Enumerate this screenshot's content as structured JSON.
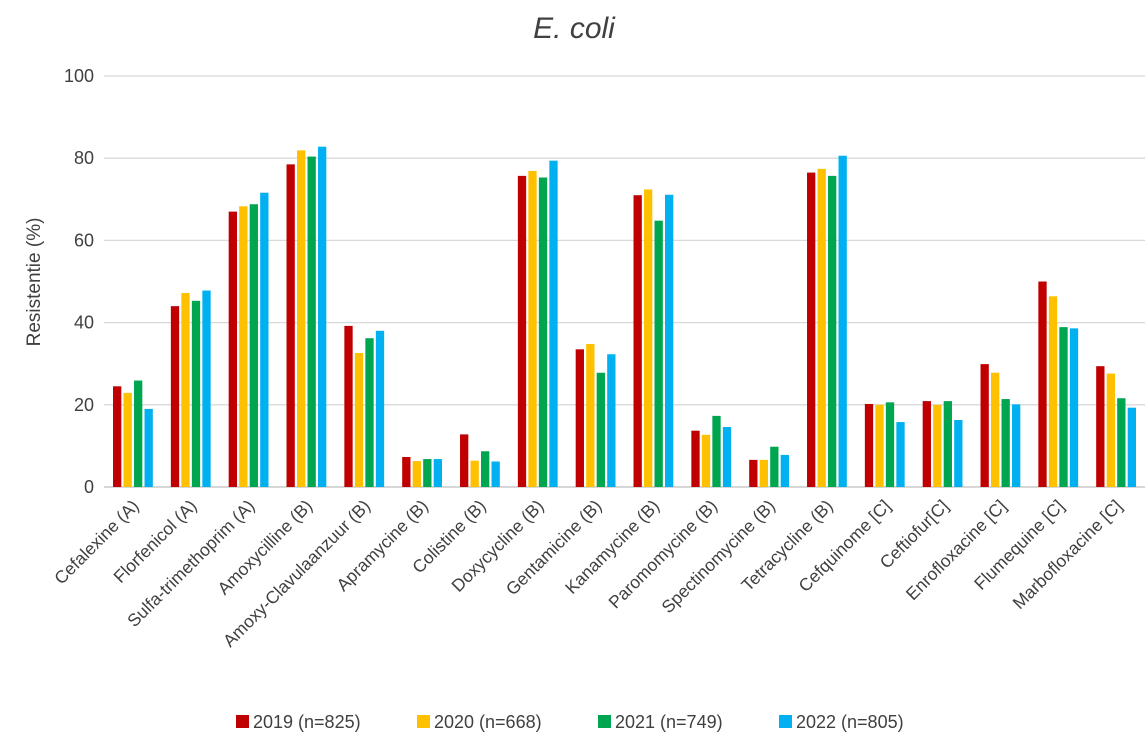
{
  "chart_data": {
    "type": "bar",
    "title": "E. coli",
    "xlabel": "",
    "ylabel": "Resistentie (%)",
    "ylim": [
      0,
      100
    ],
    "yticks": [
      0,
      20,
      40,
      60,
      80,
      100
    ],
    "grid": true,
    "legend_position": "bottom",
    "categories": [
      "Cefalexine (A)",
      "Florfenicol (A)",
      "Sulfa-trimethoprim (A)",
      "Amoxycilline (B)",
      "Amoxy-Clavulaanzuur (B)",
      "Apramycine (B)",
      "Colistine (B)",
      "Doxycycline (B)",
      "Gentamicine (B)",
      "Kanamycine (B)",
      "Paromomycine (B)",
      "Spectinomycine (B)",
      "Tetracycline (B)",
      "Cefquinome [C]",
      "Ceftiofur[C]",
      "Enrofloxacine [C]",
      "Flumequine [C]",
      "Marbofloxacine [C]"
    ],
    "series": [
      {
        "name": "2019 (n=825)",
        "color": "#c00000",
        "values": [
          24.5,
          44,
          67,
          78.5,
          39.2,
          7.3,
          12.8,
          75.7,
          33.5,
          71,
          13.7,
          6.6,
          76.5,
          20.2,
          20.9,
          29.9,
          50,
          29.4
        ]
      },
      {
        "name": "2020 (n=668)",
        "color": "#ffc000",
        "values": [
          22.9,
          47.2,
          68.3,
          81.9,
          32.6,
          6.3,
          6.4,
          76.9,
          34.8,
          72.4,
          12.7,
          6.6,
          77.4,
          20,
          20,
          27.8,
          46.4,
          27.6
        ]
      },
      {
        "name": "2021 (n=749)",
        "color": "#00a64f",
        "values": [
          25.9,
          45.3,
          68.8,
          80.4,
          36.2,
          6.8,
          8.7,
          75.3,
          27.8,
          64.8,
          17.3,
          9.8,
          75.7,
          20.6,
          20.9,
          21.4,
          38.9,
          21.6
        ]
      },
      {
        "name": "2022 (n=805)",
        "color": "#00b0f0",
        "values": [
          19.0,
          47.8,
          71.6,
          82.8,
          38.0,
          6.8,
          6.2,
          79.4,
          32.3,
          71.1,
          14.6,
          7.8,
          80.6,
          15.8,
          16.3,
          20.1,
          38.6,
          19.3
        ]
      }
    ]
  }
}
